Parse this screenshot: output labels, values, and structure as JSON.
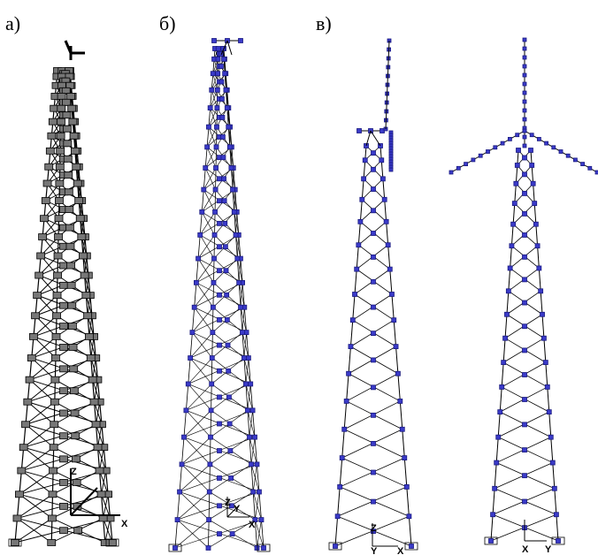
{
  "labels": {
    "a": "а)",
    "b": "б)",
    "v": "в)"
  },
  "axes": {
    "a": {
      "z": "Z",
      "x": "X"
    },
    "b": {
      "z": "Z",
      "y": "Y",
      "x": "X"
    },
    "v1": {
      "z": "Z",
      "y": "Y",
      "x": "X"
    },
    "v2": {
      "x": "X",
      "y": "Y"
    }
  }
}
